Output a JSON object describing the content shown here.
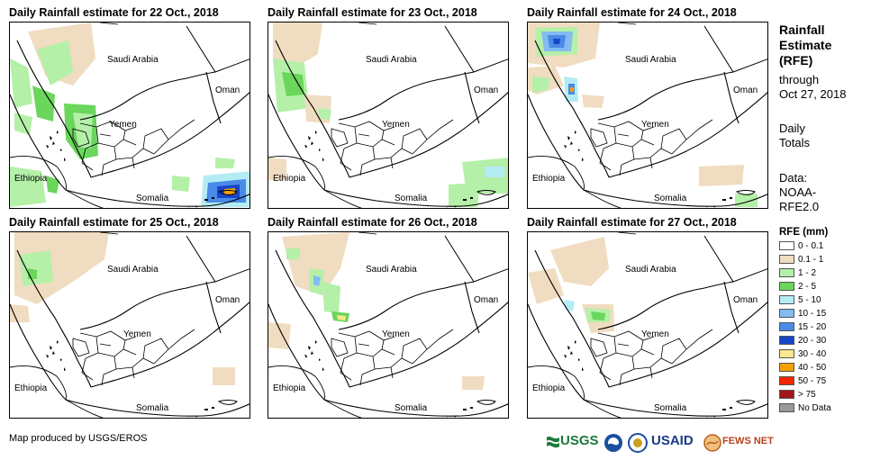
{
  "panels": [
    {
      "title": "Daily Rainfall estimate for 22 Oct., 2018"
    },
    {
      "title": "Daily Rainfall estimate for 23 Oct., 2018"
    },
    {
      "title": "Daily Rainfall estimate for 24 Oct., 2018"
    },
    {
      "title": "Daily Rainfall estimate for 25 Oct., 2018"
    },
    {
      "title": "Daily Rainfall estimate for 26 Oct., 2018"
    },
    {
      "title": "Daily Rainfall estimate for 27 Oct., 2018"
    }
  ],
  "place_labels": {
    "saudi": "Saudi Arabia",
    "oman": "Oman",
    "yemen": "Yemen",
    "ethiopia": "Ethiopia",
    "somalia": "Somalia"
  },
  "sidebar": {
    "title_lines": [
      "Rainfall",
      "Estimate",
      "(RFE)"
    ],
    "through_lines": [
      "through",
      "Oct 27, 2018"
    ],
    "totals_lines": [
      "Daily",
      "Totals"
    ],
    "data_lines": [
      "Data:",
      "NOAA-",
      "RFE2.0"
    ]
  },
  "legend": {
    "title": "RFE (mm)",
    "items": [
      {
        "label": "0 - 0.1",
        "color": "#ffffff"
      },
      {
        "label": "0.1 - 1",
        "color": "#f0dcc0"
      },
      {
        "label": "1 - 2",
        "color": "#b4f0a8"
      },
      {
        "label": "2 - 5",
        "color": "#6ad65c"
      },
      {
        "label": "5 - 10",
        "color": "#b4ecf4"
      },
      {
        "label": "10 - 15",
        "color": "#82bcf0"
      },
      {
        "label": "15 - 20",
        "color": "#4a8ae8"
      },
      {
        "label": "20 - 30",
        "color": "#1846c8"
      },
      {
        "label": "30 - 40",
        "color": "#fae68c"
      },
      {
        "label": "40 - 50",
        "color": "#f5a000"
      },
      {
        "label": "50 - 75",
        "color": "#f02800"
      },
      {
        "label": "> 75",
        "color": "#a01818"
      },
      {
        "label": "No Data",
        "color": "#999999"
      }
    ]
  },
  "credit": "Map produced by USGS/EROS",
  "logos": {
    "usgs": "USGS",
    "noaa": "NOAA",
    "usaid": "USAID",
    "fewsnet": "FEWS NET"
  }
}
